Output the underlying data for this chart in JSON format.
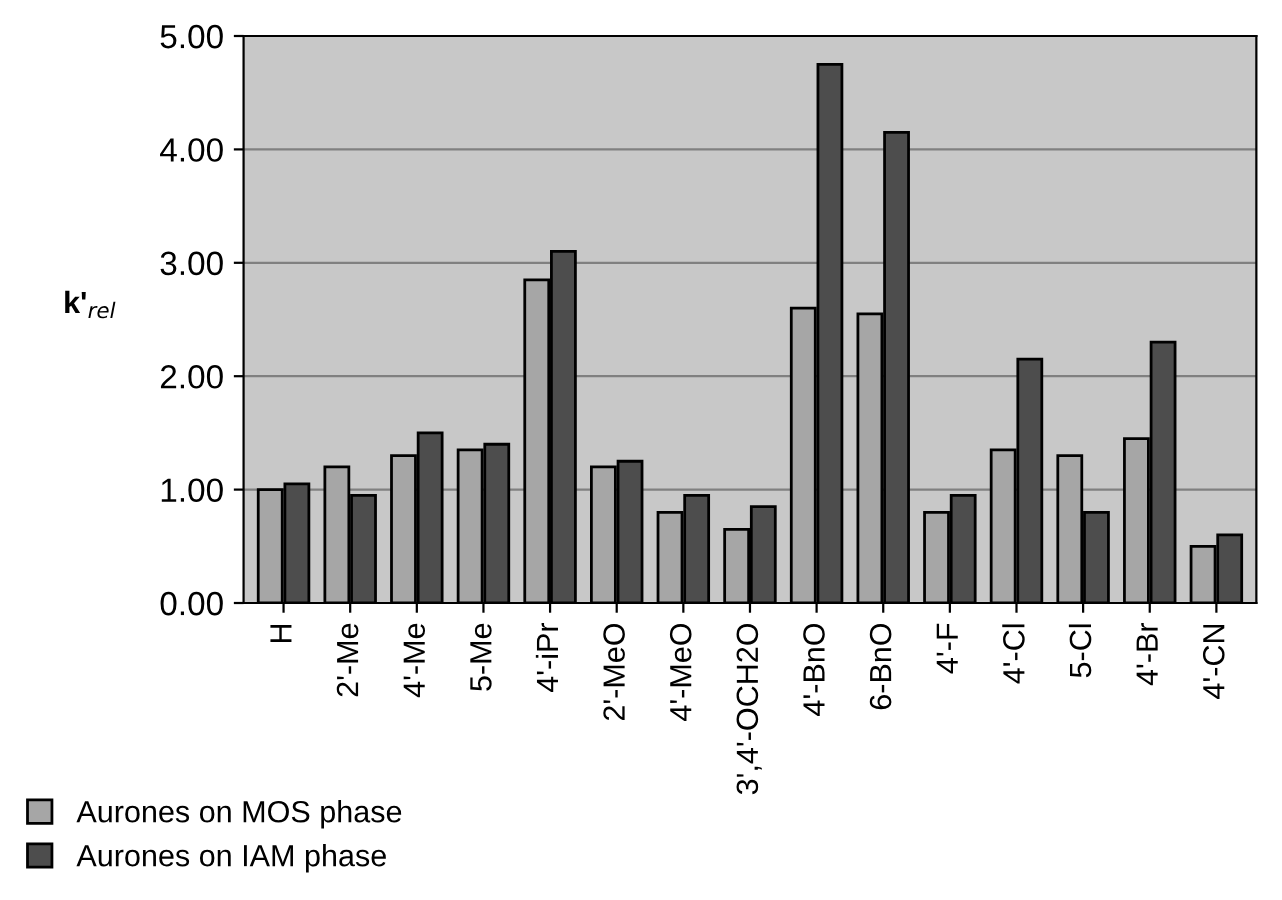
{
  "chart_data": {
    "type": "bar",
    "ylabel": "k'$_{rel}$",
    "categories": [
      "H",
      "2'-Me",
      "4'-Me",
      "5-Me",
      "4'-iPr",
      "2'-MeO",
      "4'-MeO",
      "3',4'-OCH2O",
      "4'-BnO",
      "6-BnO",
      "4'-F",
      "4'-Cl",
      "5-Cl",
      "4'-Br",
      "4'-CN"
    ],
    "series": [
      {
        "name": "Aurones on MOS phase",
        "color": "#a6a6a6",
        "values": [
          1.0,
          1.2,
          1.3,
          1.35,
          2.85,
          1.2,
          0.8,
          0.65,
          2.6,
          2.55,
          0.8,
          1.35,
          1.3,
          1.45,
          0.5
        ]
      },
      {
        "name": "Aurones on IAM phase",
        "color": "#4d4d4d",
        "values": [
          1.05,
          0.95,
          1.5,
          1.4,
          3.1,
          1.25,
          0.95,
          0.85,
          4.75,
          4.15,
          0.95,
          2.15,
          0.8,
          2.3,
          0.6
        ]
      }
    ],
    "ylim": [
      0,
      5
    ],
    "yticks": [
      {
        "value": 0,
        "label": "0.00"
      },
      {
        "value": 1,
        "label": "1.00"
      },
      {
        "value": 2,
        "label": "2.00"
      },
      {
        "value": 3,
        "label": "3.00"
      },
      {
        "value": 4,
        "label": "4.00"
      },
      {
        "value": 5,
        "label": "5.00"
      }
    ],
    "grid": "y",
    "legend": "bottom left"
  }
}
